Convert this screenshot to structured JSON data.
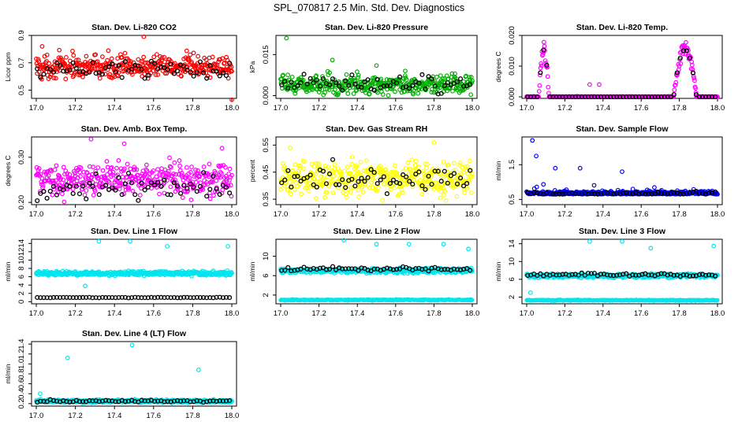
{
  "title": "SPL_070817  2.5 Min. Std. Dev. Diagnostics",
  "colors": {
    "overlay": "#000000"
  },
  "chart_data": [
    {
      "type": "scatter",
      "id": "co2",
      "title": "Stan. Dev. Li-820 CO2",
      "ylabel": "Licor ppm",
      "color": "#ff0000",
      "xlim": [
        17.0,
        18.0
      ],
      "ylim": [
        0.44,
        0.9
      ],
      "xticks": [
        "17.0",
        "17.2",
        "17.4",
        "17.6",
        "17.8",
        "18.0"
      ],
      "xtick_values": [
        17.0,
        17.2,
        17.4,
        17.6,
        17.8,
        18.0
      ],
      "yticks": [
        "0.5",
        "0.7",
        "0.9"
      ],
      "ytick_values": [
        0.5,
        0.7,
        0.9
      ],
      "base": 0.67,
      "spread": 0.06,
      "overlay_offset": -0.02,
      "outliers": [
        [
          17.55,
          0.89
        ],
        [
          18.0,
          0.43
        ],
        [
          17.03,
          0.82
        ]
      ]
    },
    {
      "type": "scatter",
      "id": "pressure",
      "title": "Stan. Dev. Li-820 Pressure",
      "ylabel": "kPa",
      "color": "#00b000",
      "xlim": [
        17.0,
        18.0
      ],
      "ylim": [
        -0.001,
        0.022
      ],
      "xticks": [
        "17.0",
        "17.2",
        "17.4",
        "17.6",
        "17.8",
        "18.0"
      ],
      "xtick_values": [
        17.0,
        17.2,
        17.4,
        17.6,
        17.8,
        18.0
      ],
      "yticks": [
        "0.000",
        "0.015"
      ],
      "ytick_values": [
        0.0,
        0.015
      ],
      "base": 0.004,
      "spread": 0.0025,
      "overlay_offset": 0.0,
      "outliers": [
        [
          17.03,
          0.021
        ],
        [
          17.27,
          0.013
        ],
        [
          17.5,
          0.011
        ],
        [
          17.65,
          0.009
        ]
      ]
    },
    {
      "type": "scatter",
      "id": "temp",
      "title": "Stan. Dev. Li-820 Temp.",
      "ylabel": "degrees C",
      "color": "#ff00ff",
      "xlim": [
        17.0,
        18.0
      ],
      "ylim": [
        -0.0005,
        0.02
      ],
      "xticks": [
        "17.0",
        "17.2",
        "17.4",
        "17.6",
        "17.8",
        "18.0"
      ],
      "xtick_values": [
        17.0,
        17.2,
        17.4,
        17.6,
        17.8,
        18.0
      ],
      "yticks": [
        "0.000",
        "0.010",
        "0.020"
      ],
      "ytick_values": [
        0.0,
        0.01,
        0.02
      ],
      "base": 0.0,
      "spread": 0.0001,
      "overlay_offset": 0.0,
      "outliers": [
        [
          17.33,
          0.004
        ],
        [
          17.38,
          0.004
        ]
      ],
      "bumps": [
        {
          "center": 17.09,
          "width": 0.022,
          "height": 0.018
        },
        {
          "center": 17.83,
          "width": 0.05,
          "height": 0.018
        }
      ]
    },
    {
      "type": "scatter",
      "id": "ambbox",
      "title": "Stan. Dev. Amb. Box Temp.",
      "ylabel": "degrees C",
      "color": "#ff00ff",
      "xlim": [
        17.0,
        18.0
      ],
      "ylim": [
        0.195,
        0.345
      ],
      "xticks": [
        "17.0",
        "17.2",
        "17.4",
        "17.6",
        "17.8",
        "18.0"
      ],
      "xtick_values": [
        17.0,
        17.2,
        17.4,
        17.6,
        17.8,
        18.0
      ],
      "yticks": [
        "0.20",
        "0.30"
      ],
      "ytick_values": [
        0.2,
        0.3
      ],
      "base": 0.25,
      "spread": 0.025,
      "overlay_offset": -0.015,
      "outliers": [
        [
          17.28,
          0.34
        ],
        [
          17.45,
          0.33
        ],
        [
          17.95,
          0.32
        ]
      ]
    },
    {
      "type": "scatter",
      "id": "rh",
      "title": "Stan. Dev. Gas Stream RH",
      "ylabel": "percent",
      "color": "#ffff00",
      "xlim": [
        17.0,
        18.0
      ],
      "ylim": [
        0.33,
        0.58
      ],
      "xticks": [
        "17.0",
        "17.2",
        "17.4",
        "17.6",
        "17.8",
        "18.0"
      ],
      "xtick_values": [
        17.0,
        17.2,
        17.4,
        17.6,
        17.8,
        18.0
      ],
      "yticks": [
        "0.35",
        "0.45",
        "0.55"
      ],
      "ytick_values": [
        0.35,
        0.45,
        0.55
      ],
      "base": 0.43,
      "spread": 0.045,
      "overlay_offset": 0.0,
      "outliers": [
        [
          17.05,
          0.54
        ],
        [
          17.8,
          0.56
        ]
      ]
    },
    {
      "type": "scatter",
      "id": "sampleflow",
      "title": "Stan. Dev. Sample Flow",
      "ylabel": "ml/min",
      "color": "#0000ff",
      "xlim": [
        17.0,
        18.0
      ],
      "ylim": [
        0.35,
        2.3
      ],
      "xticks": [
        "17.0",
        "17.2",
        "17.4",
        "17.6",
        "17.8",
        "18.0"
      ],
      "xtick_values": [
        17.0,
        17.2,
        17.4,
        17.6,
        17.8,
        18.0
      ],
      "yticks": [
        "0.5",
        "1.5"
      ],
      "ytick_values": [
        0.5,
        1.5
      ],
      "base": 0.65,
      "spread": 0.08,
      "overlay_offset": 0.0,
      "outliers": [
        [
          17.03,
          2.2
        ],
        [
          17.05,
          1.75
        ],
        [
          17.15,
          1.4
        ],
        [
          17.28,
          1.4
        ],
        [
          17.5,
          1.3
        ]
      ]
    },
    {
      "type": "scatter",
      "id": "line1",
      "title": "Stan. Dev. Line 1 Flow",
      "ylabel": "ml/min",
      "color": "#00e5ee",
      "xlim": [
        17.0,
        18.0
      ],
      "ylim": [
        -0.5,
        15.0
      ],
      "xticks": [
        "17.0",
        "17.2",
        "17.4",
        "17.6",
        "17.8",
        "18.0"
      ],
      "xtick_values": [
        17.0,
        17.2,
        17.4,
        17.6,
        17.8,
        18.0
      ],
      "yticks": [
        "0",
        "2",
        "4",
        "6",
        "8",
        "10",
        "12",
        "14"
      ],
      "ytick_values": [
        0,
        2,
        4,
        6,
        8,
        10,
        12,
        14
      ],
      "base": 6.8,
      "spread": 0.35,
      "overlay_value": 1.0,
      "outliers": [
        [
          17.32,
          14.5
        ],
        [
          17.48,
          14.5
        ],
        [
          17.67,
          13.3
        ],
        [
          17.98,
          13.3
        ],
        [
          17.25,
          3.8
        ]
      ]
    },
    {
      "type": "scatter",
      "id": "line2",
      "title": "Stan. Dev. Line 2 Flow",
      "ylabel": "ml/min",
      "color": "#00e5ee",
      "xlim": [
        17.0,
        18.0
      ],
      "ylim": [
        0.2,
        13.5
      ],
      "xticks": [
        "17.0",
        "17.2",
        "17.4",
        "17.6",
        "17.8",
        "18.0"
      ],
      "xtick_values": [
        17.0,
        17.2,
        17.4,
        17.6,
        17.8,
        18.0
      ],
      "yticks": [
        "2",
        "6",
        "10"
      ],
      "ytick_values": [
        2,
        6,
        10
      ],
      "base": 7.0,
      "spread": 0.35,
      "overlay_offset": 0.35,
      "low_band": 1.0,
      "outliers": [
        [
          17.33,
          13.3
        ],
        [
          17.5,
          12.5
        ],
        [
          17.67,
          12.5
        ],
        [
          17.85,
          12.5
        ],
        [
          17.98,
          11.5
        ]
      ]
    },
    {
      "type": "scatter",
      "id": "line3",
      "title": "Stan. Dev. Line 3 Flow",
      "ylabel": "ml/min",
      "color": "#00e5ee",
      "xlim": [
        17.0,
        18.0
      ],
      "ylim": [
        0.5,
        15.0
      ],
      "xticks": [
        "17.0",
        "17.2",
        "17.4",
        "17.6",
        "17.8",
        "18.0"
      ],
      "xtick_values": [
        17.0,
        17.2,
        17.4,
        17.6,
        17.8,
        18.0
      ],
      "yticks": [
        "2",
        "6",
        "10",
        "14"
      ],
      "ytick_values": [
        2,
        6,
        10,
        14
      ],
      "base": 6.8,
      "spread": 0.3,
      "overlay_offset": 0.2,
      "low_band": 1.3,
      "outliers": [
        [
          17.33,
          14.5
        ],
        [
          17.5,
          14.5
        ],
        [
          17.65,
          13.0
        ],
        [
          17.98,
          13.5
        ],
        [
          17.02,
          3.0
        ]
      ]
    },
    {
      "type": "scatter",
      "id": "line4",
      "title": "Stan. Dev. Line 4 (LT) Flow",
      "ylabel": "ml/min",
      "color": "#00e5ee",
      "xlim": [
        17.0,
        18.0
      ],
      "ylim": [
        0.15,
        1.45
      ],
      "xticks": [
        "17.0",
        "17.2",
        "17.4",
        "17.6",
        "17.8",
        "18.0"
      ],
      "xtick_values": [
        17.0,
        17.2,
        17.4,
        17.6,
        17.8,
        18.0
      ],
      "yticks": [
        "0.2",
        "0.4",
        "0.6",
        "0.8",
        "1.0",
        "1.2",
        "1.4"
      ],
      "ytick_values": [
        0.2,
        0.4,
        0.6,
        0.8,
        1.0,
        1.2,
        1.4
      ],
      "base": 0.25,
      "spread": 0.02,
      "overlay_offset": 0.0,
      "outliers": [
        [
          17.16,
          1.12
        ],
        [
          17.49,
          1.38
        ],
        [
          17.83,
          0.88
        ],
        [
          17.02,
          0.4
        ]
      ]
    }
  ]
}
